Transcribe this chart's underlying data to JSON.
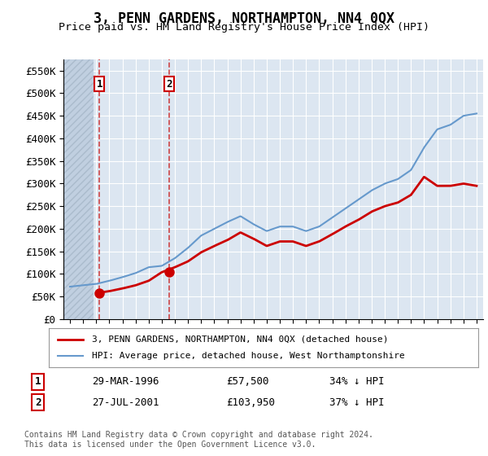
{
  "title": "3, PENN GARDENS, NORTHAMPTON, NN4 0QX",
  "subtitle": "Price paid vs. HM Land Registry's House Price Index (HPI)",
  "title_fontsize": 13,
  "subtitle_fontsize": 11,
  "background_color": "#ffffff",
  "plot_bg_color": "#dce6f1",
  "hatch_color": "#c0cfe0",
  "grid_color": "#ffffff",
  "ylabel_format": "£{0}K",
  "ylim": [
    0,
    575000
  ],
  "yticks": [
    0,
    50000,
    100000,
    150000,
    200000,
    250000,
    300000,
    350000,
    400000,
    450000,
    500000,
    550000
  ],
  "xlim_start": 1993.5,
  "xlim_end": 2025.5,
  "sale1_year": 1996.24,
  "sale1_price": 57500,
  "sale1_label": "1",
  "sale2_year": 2001.57,
  "sale2_price": 103950,
  "sale2_label": "2",
  "red_line_color": "#cc0000",
  "blue_line_color": "#6699cc",
  "sale_marker_color": "#cc0000",
  "dashed_line_color": "#cc3333",
  "legend_line1": "3, PENN GARDENS, NORTHAMPTON, NN4 0QX (detached house)",
  "legend_line2": "HPI: Average price, detached house, West Northamptonshire",
  "table_row1": [
    "1",
    "29-MAR-1996",
    "£57,500",
    "34% ↓ HPI"
  ],
  "table_row2": [
    "2",
    "27-JUL-2001",
    "£103,950",
    "37% ↓ HPI"
  ],
  "footnote": "Contains HM Land Registry data © Crown copyright and database right 2024.\nThis data is licensed under the Open Government Licence v3.0.",
  "hpi_years": [
    1994,
    1995,
    1996,
    1997,
    1998,
    1999,
    2000,
    2001,
    2002,
    2003,
    2004,
    2005,
    2006,
    2007,
    2008,
    2009,
    2010,
    2011,
    2012,
    2013,
    2014,
    2015,
    2016,
    2017,
    2018,
    2019,
    2020,
    2021,
    2022,
    2023,
    2024,
    2025
  ],
  "hpi_values": [
    72000,
    75000,
    78000,
    85000,
    93000,
    102000,
    115000,
    118000,
    135000,
    158000,
    185000,
    200000,
    215000,
    228000,
    210000,
    195000,
    205000,
    205000,
    195000,
    205000,
    225000,
    245000,
    265000,
    285000,
    300000,
    310000,
    330000,
    380000,
    420000,
    430000,
    450000,
    455000
  ],
  "red_years": [
    1996,
    1997,
    1998,
    1999,
    2000,
    2001,
    2002,
    2003,
    2004,
    2005,
    2006,
    2007,
    2008,
    2009,
    2010,
    2011,
    2012,
    2013,
    2014,
    2015,
    2016,
    2017,
    2018,
    2019,
    2020,
    2021,
    2022,
    2023,
    2024,
    2025
  ],
  "red_values": [
    57500,
    62000,
    68000,
    75000,
    85000,
    103950,
    115000,
    128000,
    148000,
    162000,
    175000,
    192000,
    178000,
    162000,
    172000,
    172000,
    162000,
    172000,
    188000,
    205000,
    220000,
    238000,
    250000,
    258000,
    275000,
    315000,
    295000,
    295000,
    300000,
    295000
  ]
}
